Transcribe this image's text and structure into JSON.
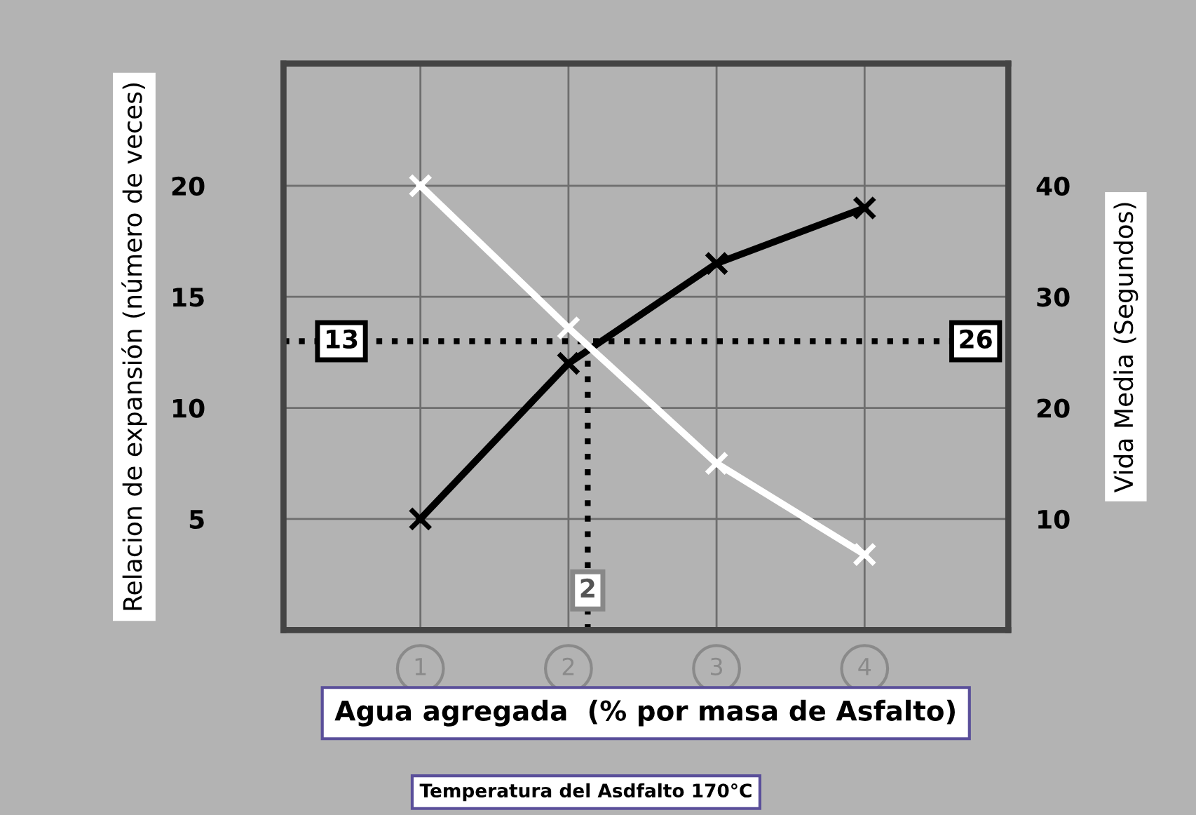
{
  "chart_data": {
    "type": "line",
    "xlabel": "Agua agregada  (% por masa de Asfalto)",
    "ylabel": "Relacion de expansión (número de veces)",
    "y2label": "Vida Media (Segundos)",
    "x": [
      1,
      2,
      3,
      4
    ],
    "series": [
      {
        "color": "#000000",
        "values": [
          5,
          12,
          16.5,
          19
        ]
      },
      {
        "color": "#ffffff",
        "axis": "y2",
        "values": [
          40,
          27.2,
          15,
          6.8
        ]
      }
    ],
    "xlim": [
      0.075,
      4.97
    ],
    "xticks": [
      1,
      2,
      3,
      4
    ],
    "ylim": [
      0,
      25.5
    ],
    "yticks": [
      5,
      10,
      15,
      20
    ],
    "y2lim": [
      0,
      51
    ],
    "y2ticks": [
      10,
      20,
      30,
      40
    ],
    "ref_lines": [
      {
        "axis": "y",
        "value": 13,
        "label": "13"
      },
      {
        "axis": "x",
        "value": 2.13,
        "label": "2"
      }
    ],
    "annotations": [
      {
        "text": "26",
        "x": 4.75,
        "y": 13
      },
      "Temperatura del Asdfalto 170°C"
    ],
    "grid": true,
    "marker": "cross",
    "line_style": "solid"
  }
}
